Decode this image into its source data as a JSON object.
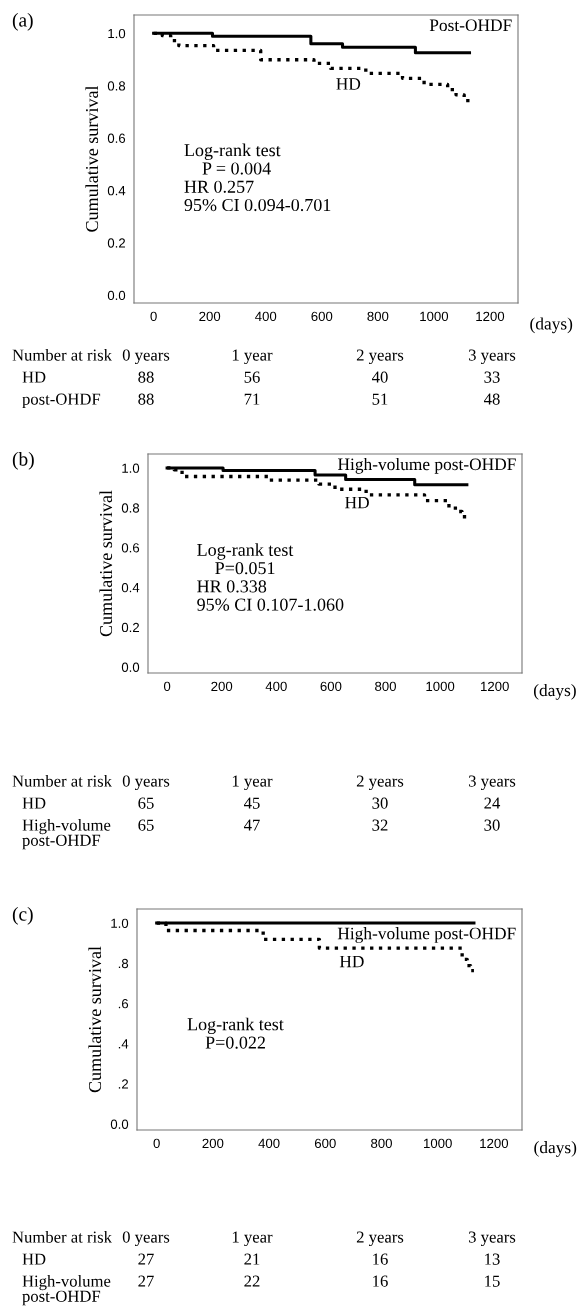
{
  "chart_data": [
    {
      "type": "step",
      "title": "(a)",
      "xlabel": "(days)",
      "ylabel": "Cumulative survival",
      "xlim": [
        -70,
        1300
      ],
      "ylim": [
        -0.03,
        1.07
      ],
      "xticks": [
        0,
        200,
        400,
        600,
        800,
        1000,
        1200
      ],
      "yticks": [
        {
          "value": 0,
          "label": "0.0"
        },
        0.2,
        0.4,
        0.6,
        0.8,
        {
          "value": 1,
          "label": "1.0"
        }
      ],
      "grid": false,
      "legend": false,
      "series": [
        {
          "name": "Post-OHDF",
          "color": "#000000",
          "line_style": "solid",
          "x": [
            0,
            210,
            561,
            674,
            934,
            1127
          ],
          "values": [
            1.0,
            0.989,
            0.96,
            0.947,
            0.926,
            0.926
          ]
        },
        {
          "name": "HD",
          "color": "#000000",
          "line_style": "dotted",
          "x": [
            0,
            31,
            61,
            90,
            214,
            382,
            572,
            632,
            757,
            888,
            965,
            1049,
            1079,
            1108,
            1132
          ],
          "values": [
            1.0,
            0.991,
            0.972,
            0.953,
            0.935,
            0.899,
            0.885,
            0.866,
            0.847,
            0.828,
            0.805,
            0.785,
            0.765,
            0.743,
            0.734
          ]
        }
      ],
      "annotations": [
        "Log-rank test\n    P = 0.004\nHR 0.257\n95% CI 0.094-0.701",
        "Number at risk",
        "0 years",
        "1 year",
        "2 years",
        "3 years",
        "HD",
        "88",
        "56",
        "40",
        "33",
        "post-OHDF",
        "88",
        "71",
        "51",
        "48"
      ]
    },
    {
      "type": "step",
      "title": "(b)",
      "xlabel": "(days)",
      "ylabel": "Cumulative survival",
      "xlim": [
        -70,
        1300
      ],
      "ylim": [
        -0.03,
        1.07
      ],
      "xticks": [
        0,
        200,
        400,
        600,
        800,
        1000,
        1200
      ],
      "yticks": [
        {
          "value": 0,
          "label": "0.0"
        },
        0.2,
        0.4,
        0.6,
        0.8,
        {
          "value": 1,
          "label": "1.0"
        }
      ],
      "grid": false,
      "legend": false,
      "series": [
        {
          "name": "High-volume post-OHDF",
          "color": "#000000",
          "line_style": "solid",
          "x": [
            0,
            205,
            542,
            654,
            907,
            1098
          ],
          "values": [
            1.0,
            0.987,
            0.965,
            0.942,
            0.916,
            0.916
          ]
        },
        {
          "name": "HD",
          "color": "#000000",
          "line_style": "dotted",
          "x": [
            0,
            26,
            44,
            62,
            371,
            556,
            615,
            729,
            943,
            1026,
            1056,
            1080,
            1098
          ],
          "values": [
            1.0,
            0.991,
            0.978,
            0.957,
            0.939,
            0.919,
            0.893,
            0.865,
            0.836,
            0.81,
            0.781,
            0.755,
            0.746
          ]
        }
      ],
      "annotations": [
        "Log-rank test\n    P=0.051\nHR 0.338\n95% CI 0.107-1.060",
        "Number at risk",
        "0 years",
        "1 year",
        "2 years",
        "3 years",
        "HD",
        "65",
        "45",
        "30",
        "24",
        "High-volume\npost-OHDF",
        "65",
        "47",
        "32",
        "30"
      ]
    },
    {
      "type": "step",
      "title": "(c)",
      "xlabel": "(days)",
      "ylabel": "Cumulative survival",
      "xlim": [
        -70,
        1300
      ],
      "ylim": [
        -0.03,
        1.07
      ],
      "xticks": [
        0,
        200,
        400,
        600,
        800,
        1000,
        1200
      ],
      "yticks": [
        {
          "value": 0,
          "label": "0.0"
        },
        {
          "value": 0.2,
          "label": ".2"
        },
        {
          "value": 0.4,
          "label": ".4"
        },
        {
          "value": 0.6,
          "label": ".6"
        },
        {
          "value": 0.8,
          "label": ".8"
        },
        {
          "value": 1,
          "label": "1.0"
        }
      ],
      "grid": false,
      "legend": false,
      "series": [
        {
          "name": "High-volume post-OHDF",
          "color": "#000000",
          "line_style": "solid",
          "x": [
            0,
            1129
          ],
          "values": [
            1.0,
            1.0
          ]
        },
        {
          "name": "HD",
          "color": "#000000",
          "line_style": "dotted",
          "x": [
            0,
            33,
            379,
            579,
            1087,
            1105,
            1117,
            1129
          ],
          "values": [
            1.0,
            0.963,
            0.919,
            0.875,
            0.819,
            0.788,
            0.763,
            0.763
          ]
        }
      ],
      "annotations": [
        "Log-rank test\n    P=0.022",
        "Number at risk",
        "0 years",
        "1 year",
        "2 years",
        "3 years",
        "HD",
        "27",
        "21",
        "16",
        "13",
        "High-volume\npost-OHDF",
        "27",
        "22",
        "16",
        "15"
      ]
    }
  ]
}
